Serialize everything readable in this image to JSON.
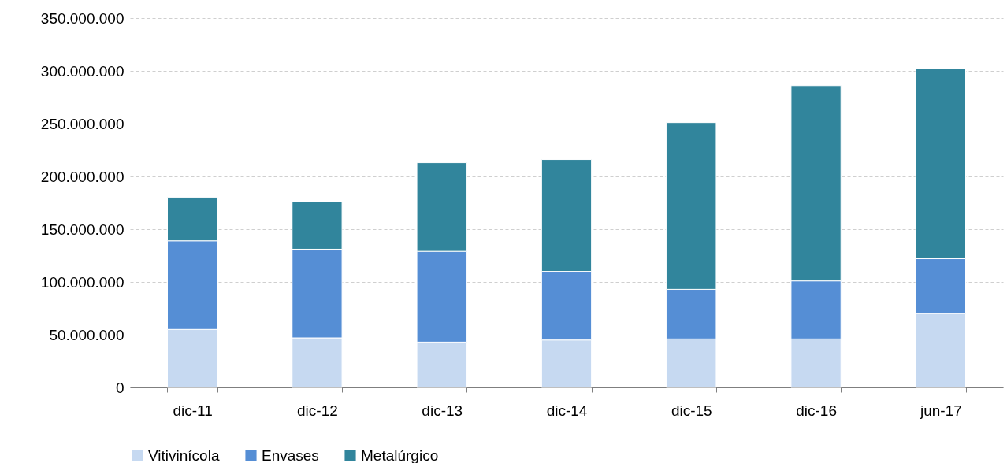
{
  "chart_data": {
    "type": "bar",
    "stacked": true,
    "categories": [
      "dic-11",
      "dic-12",
      "dic-13",
      "dic-14",
      "dic-15",
      "dic-16",
      "jun-17"
    ],
    "series": [
      {
        "name": "Vitivinícola",
        "color": "#c6d9f1",
        "values": [
          55000000,
          47000000,
          43000000,
          45000000,
          46000000,
          46000000,
          70000000
        ]
      },
      {
        "name": "Envases",
        "color": "#558ed5",
        "values": [
          84000000,
          84000000,
          86000000,
          65000000,
          47000000,
          55000000,
          52000000
        ]
      },
      {
        "name": "Metalúrgico",
        "color": "#31859c",
        "values": [
          41000000,
          45000000,
          84000000,
          106000000,
          158000000,
          185000000,
          180000000
        ]
      }
    ],
    "ylim": [
      0,
      350000000
    ],
    "yticks": [
      0,
      {
        "value": 50000000,
        "label": "50.000.000"
      },
      {
        "value": 100000000,
        "label": "100.000.000"
      },
      {
        "value": 150000000,
        "label": "150.000.000"
      },
      {
        "value": 200000000,
        "label": "200.000.000"
      },
      {
        "value": 250000000,
        "label": "250.000.000"
      },
      {
        "value": 300000000,
        "label": "300.000.000"
      },
      {
        "value": 350000000,
        "label": "350.000.000"
      }
    ],
    "grid": "y",
    "legend": "bottom"
  }
}
